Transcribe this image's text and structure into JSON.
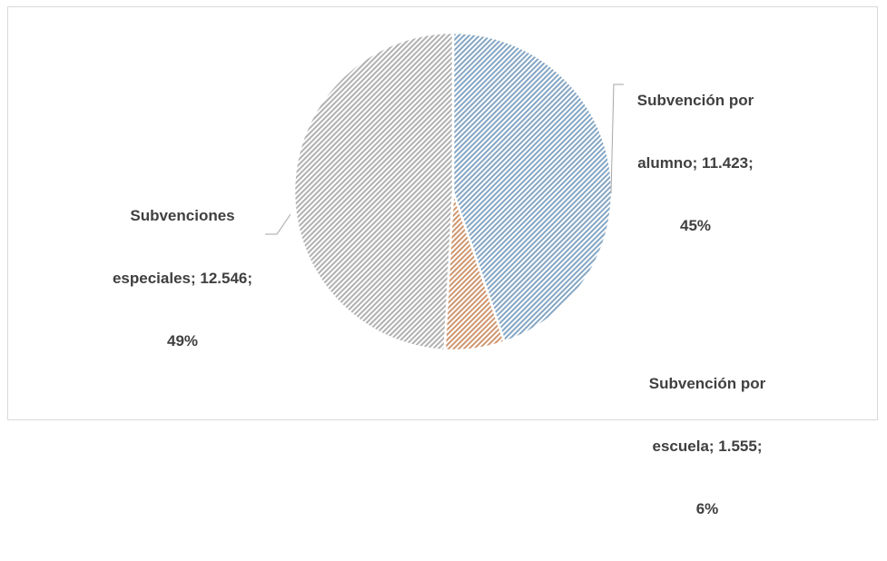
{
  "chart_data": {
    "type": "pie",
    "slices": [
      {
        "name": "Subvención por alumno",
        "value": 11423,
        "value_text": "11.423",
        "percent_text": "45%",
        "color": "#9dc3e6"
      },
      {
        "name": "Subvención por escuela",
        "value": 1555,
        "value_text": "1.555",
        "percent_text": "6%",
        "color": "#f4b183"
      },
      {
        "name": "Subvenciones especiales",
        "value": 12546,
        "value_text": "12.546",
        "percent_text": "49%",
        "color": "#d0d0d0"
      }
    ],
    "data_labels": [
      {
        "lines": [
          "Subvención por",
          "alumno; 11.423;",
          "45%"
        ]
      },
      {
        "lines": [
          "Subvención por",
          "escuela; 1.555;",
          "6%"
        ]
      },
      {
        "lines": [
          "Subvenciones",
          "especiales; 12.546;",
          "49%"
        ]
      }
    ],
    "pattern": "diagonal-hatch",
    "start_angle": "12 o'clock, clockwise"
  }
}
